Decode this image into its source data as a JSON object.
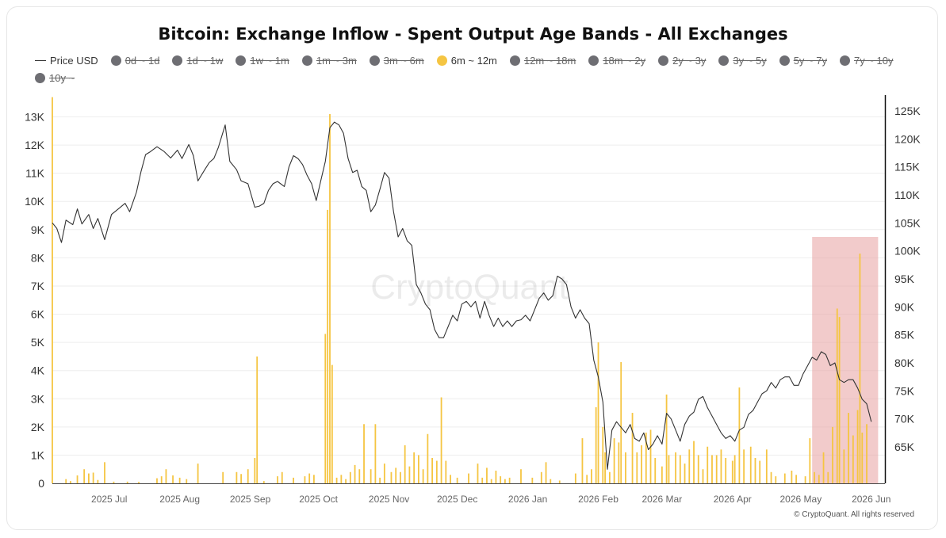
{
  "chart_data": {
    "type": "bar",
    "title": "Bitcoin: Exchange Inflow - Spent Output Age Bands - All Exchanges",
    "legend": [
      {
        "name": "Price USD",
        "type": "line",
        "color": "#333333",
        "enabled": true
      },
      {
        "name": "0d ~ 1d",
        "color": "#6e6e73",
        "enabled": false
      },
      {
        "name": "1d ~ 1w",
        "color": "#6e6e73",
        "enabled": false
      },
      {
        "name": "1w ~ 1m",
        "color": "#6e6e73",
        "enabled": false
      },
      {
        "name": "1m ~ 3m",
        "color": "#6e6e73",
        "enabled": false
      },
      {
        "name": "3m ~ 6m",
        "color": "#6e6e73",
        "enabled": false
      },
      {
        "name": "6m ~ 12m",
        "color": "#f5c542",
        "enabled": true
      },
      {
        "name": "12m ~ 18m",
        "color": "#6e6e73",
        "enabled": false
      },
      {
        "name": "18m ~ 2y",
        "color": "#6e6e73",
        "enabled": false
      },
      {
        "name": "2y ~ 3y",
        "color": "#6e6e73",
        "enabled": false
      },
      {
        "name": "3y ~ 5y",
        "color": "#6e6e73",
        "enabled": false
      },
      {
        "name": "5y ~ 7y",
        "color": "#6e6e73",
        "enabled": false
      },
      {
        "name": "7y ~ 10y",
        "color": "#6e6e73",
        "enabled": false
      },
      {
        "name": "10y ~",
        "color": "#6e6e73",
        "enabled": false
      }
    ],
    "x_labels": [
      "2025 Jul",
      "2025 Aug",
      "2025 Sep",
      "2025 Oct",
      "2025 Nov",
      "2025 Dec",
      "2026 Jan",
      "2026 Feb",
      "2026 Mar",
      "2026 Apr",
      "2026 May",
      "2026 Jun"
    ],
    "x_range": [
      "2025-06-06",
      "2026-06-07"
    ],
    "y_left": {
      "ticks": [
        "0",
        "1K",
        "2K",
        "3K",
        "4K",
        "5K",
        "6K",
        "7K",
        "8K",
        "9K",
        "10K",
        "11K",
        "12K",
        "13K"
      ],
      "min": 0,
      "max": 13000
    },
    "y_right": {
      "ticks": [
        "65K",
        "70K",
        "75K",
        "80K",
        "85K",
        "90K",
        "95K",
        "100K",
        "105K",
        "110K",
        "115K",
        "120K",
        "125K"
      ],
      "min": 60200,
      "max": 126800
    },
    "grid": true,
    "inflow_6m_12m": [
      [
        "2025-06-12",
        150
      ],
      [
        "2025-06-14",
        80
      ],
      [
        "2025-06-17",
        280
      ],
      [
        "2025-06-20",
        500
      ],
      [
        "2025-06-22",
        350
      ],
      [
        "2025-06-24",
        380
      ],
      [
        "2025-06-26",
        120
      ],
      [
        "2025-06-29",
        750
      ],
      [
        "2025-07-03",
        60
      ],
      [
        "2025-07-09",
        60
      ],
      [
        "2025-07-14",
        50
      ],
      [
        "2025-07-22",
        180
      ],
      [
        "2025-07-24",
        250
      ],
      [
        "2025-07-26",
        500
      ],
      [
        "2025-07-29",
        280
      ],
      [
        "2025-08-01",
        200
      ],
      [
        "2025-08-04",
        150
      ],
      [
        "2025-08-09",
        700
      ],
      [
        "2025-08-20",
        400
      ],
      [
        "2025-08-26",
        400
      ],
      [
        "2025-08-28",
        330
      ],
      [
        "2025-08-31",
        500
      ],
      [
        "2025-09-03",
        900
      ],
      [
        "2025-09-04",
        4500
      ],
      [
        "2025-09-07",
        80
      ],
      [
        "2025-09-13",
        250
      ],
      [
        "2025-09-15",
        400
      ],
      [
        "2025-09-20",
        200
      ],
      [
        "2025-09-25",
        250
      ],
      [
        "2025-09-27",
        350
      ],
      [
        "2025-09-29",
        300
      ],
      [
        "2025-10-04",
        5300
      ],
      [
        "2025-10-05",
        9700
      ],
      [
        "2025-10-06",
        13100
      ],
      [
        "2025-10-07",
        4200
      ],
      [
        "2025-10-09",
        200
      ],
      [
        "2025-10-11",
        300
      ],
      [
        "2025-10-13",
        150
      ],
      [
        "2025-10-15",
        400
      ],
      [
        "2025-10-17",
        650
      ],
      [
        "2025-10-19",
        500
      ],
      [
        "2025-10-21",
        2100
      ],
      [
        "2025-10-24",
        500
      ],
      [
        "2025-10-26",
        2100
      ],
      [
        "2025-10-28",
        200
      ],
      [
        "2025-10-30",
        700
      ],
      [
        "2025-11-02",
        400
      ],
      [
        "2025-11-04",
        550
      ],
      [
        "2025-11-06",
        400
      ],
      [
        "2025-11-08",
        1350
      ],
      [
        "2025-11-10",
        600
      ],
      [
        "2025-11-12",
        1100
      ],
      [
        "2025-11-14",
        1000
      ],
      [
        "2025-11-16",
        500
      ],
      [
        "2025-11-18",
        1750
      ],
      [
        "2025-11-20",
        900
      ],
      [
        "2025-11-22",
        800
      ],
      [
        "2025-11-24",
        3050
      ],
      [
        "2025-11-26",
        800
      ],
      [
        "2025-11-28",
        300
      ],
      [
        "2025-12-01",
        200
      ],
      [
        "2025-12-06",
        350
      ],
      [
        "2025-12-10",
        700
      ],
      [
        "2025-12-12",
        200
      ],
      [
        "2025-12-14",
        550
      ],
      [
        "2025-12-16",
        150
      ],
      [
        "2025-12-18",
        450
      ],
      [
        "2025-12-20",
        250
      ],
      [
        "2025-12-22",
        150
      ],
      [
        "2025-12-24",
        200
      ],
      [
        "2025-12-29",
        500
      ],
      [
        "2026-01-03",
        200
      ],
      [
        "2026-01-07",
        400
      ],
      [
        "2026-01-09",
        750
      ],
      [
        "2026-01-11",
        150
      ],
      [
        "2026-01-15",
        100
      ],
      [
        "2026-01-22",
        350
      ],
      [
        "2026-01-25",
        1600
      ],
      [
        "2026-01-27",
        300
      ],
      [
        "2026-01-29",
        500
      ],
      [
        "2026-01-31",
        2700
      ],
      [
        "2026-02-01",
        5000
      ],
      [
        "2026-02-03",
        2000
      ],
      [
        "2026-02-04",
        1100
      ],
      [
        "2026-02-06",
        400
      ],
      [
        "2026-02-08",
        1600
      ],
      [
        "2026-02-10",
        1450
      ],
      [
        "2026-02-11",
        4300
      ],
      [
        "2026-02-13",
        1100
      ],
      [
        "2026-02-16",
        2500
      ],
      [
        "2026-02-18",
        1100
      ],
      [
        "2026-02-20",
        1350
      ],
      [
        "2026-02-22",
        1800
      ],
      [
        "2026-02-24",
        1900
      ],
      [
        "2026-02-26",
        900
      ],
      [
        "2026-03-01",
        600
      ],
      [
        "2026-03-03",
        3150
      ],
      [
        "2026-03-04",
        1000
      ],
      [
        "2026-03-07",
        1100
      ],
      [
        "2026-03-09",
        1000
      ],
      [
        "2026-03-11",
        700
      ],
      [
        "2026-03-13",
        1200
      ],
      [
        "2026-03-15",
        1500
      ],
      [
        "2026-03-17",
        1000
      ],
      [
        "2026-03-19",
        500
      ],
      [
        "2026-03-21",
        1300
      ],
      [
        "2026-03-23",
        1000
      ],
      [
        "2026-03-25",
        1000
      ],
      [
        "2026-03-27",
        1200
      ],
      [
        "2026-03-29",
        900
      ],
      [
        "2026-04-01",
        800
      ],
      [
        "2026-04-02",
        1000
      ],
      [
        "2026-04-04",
        3400
      ],
      [
        "2026-04-06",
        1200
      ],
      [
        "2026-04-09",
        1300
      ],
      [
        "2026-04-11",
        900
      ],
      [
        "2026-04-13",
        800
      ],
      [
        "2026-04-16",
        1200
      ],
      [
        "2026-04-18",
        400
      ],
      [
        "2026-04-20",
        250
      ],
      [
        "2026-04-24",
        350
      ],
      [
        "2026-04-27",
        450
      ],
      [
        "2026-04-29",
        300
      ],
      [
        "2026-05-03",
        250
      ],
      [
        "2026-05-05",
        1600
      ],
      [
        "2026-05-07",
        400
      ],
      [
        "2026-05-09",
        300
      ],
      [
        "2026-05-11",
        1100
      ],
      [
        "2026-05-13",
        400
      ],
      [
        "2026-05-15",
        2000
      ],
      [
        "2026-05-17",
        6200
      ],
      [
        "2026-05-18",
        5900
      ],
      [
        "2026-05-20",
        1200
      ],
      [
        "2026-05-22",
        2500
      ],
      [
        "2026-05-24",
        1700
      ],
      [
        "2026-05-26",
        2600
      ],
      [
        "2026-05-27",
        8150
      ],
      [
        "2026-05-28",
        1800
      ],
      [
        "2026-05-30",
        2100
      ]
    ],
    "price_usd": [
      [
        "2025-06-06",
        105000
      ],
      [
        "2025-06-08",
        104000
      ],
      [
        "2025-06-10",
        101500
      ],
      [
        "2025-06-12",
        105500
      ],
      [
        "2025-06-15",
        104700
      ],
      [
        "2025-06-17",
        107500
      ],
      [
        "2025-06-19",
        104800
      ],
      [
        "2025-06-22",
        106500
      ],
      [
        "2025-06-24",
        104000
      ],
      [
        "2025-06-26",
        105800
      ],
      [
        "2025-06-29",
        102000
      ],
      [
        "2025-07-02",
        106500
      ],
      [
        "2025-07-05",
        107500
      ],
      [
        "2025-07-08",
        108500
      ],
      [
        "2025-07-10",
        107000
      ],
      [
        "2025-07-13",
        110500
      ],
      [
        "2025-07-15",
        114200
      ],
      [
        "2025-07-17",
        117200
      ],
      [
        "2025-07-19",
        117700
      ],
      [
        "2025-07-22",
        118600
      ],
      [
        "2025-07-25",
        117800
      ],
      [
        "2025-07-28",
        116600
      ],
      [
        "2025-07-31",
        118000
      ],
      [
        "2025-08-02",
        116500
      ],
      [
        "2025-08-05",
        119000
      ],
      [
        "2025-08-07",
        117000
      ],
      [
        "2025-08-09",
        112500
      ],
      [
        "2025-08-12",
        114500
      ],
      [
        "2025-08-14",
        115800
      ],
      [
        "2025-08-16",
        116500
      ],
      [
        "2025-08-18",
        118500
      ],
      [
        "2025-08-21",
        122500
      ],
      [
        "2025-08-23",
        116000
      ],
      [
        "2025-08-26",
        114500
      ],
      [
        "2025-08-28",
        112500
      ],
      [
        "2025-08-31",
        112000
      ],
      [
        "2025-09-03",
        107800
      ],
      [
        "2025-09-05",
        108000
      ],
      [
        "2025-09-07",
        108500
      ],
      [
        "2025-09-09",
        110800
      ],
      [
        "2025-09-11",
        112000
      ],
      [
        "2025-09-13",
        112400
      ],
      [
        "2025-09-16",
        111500
      ],
      [
        "2025-09-18",
        115000
      ],
      [
        "2025-09-20",
        117000
      ],
      [
        "2025-09-22",
        116500
      ],
      [
        "2025-09-24",
        115400
      ],
      [
        "2025-09-26",
        113500
      ],
      [
        "2025-09-28",
        112000
      ],
      [
        "2025-09-30",
        109000
      ],
      [
        "2025-10-02",
        112500
      ],
      [
        "2025-10-04",
        116000
      ],
      [
        "2025-10-06",
        122000
      ],
      [
        "2025-10-08",
        123000
      ],
      [
        "2025-10-10",
        122500
      ],
      [
        "2025-10-12",
        121000
      ],
      [
        "2025-10-14",
        116500
      ],
      [
        "2025-10-16",
        114000
      ],
      [
        "2025-10-18",
        114400
      ],
      [
        "2025-10-20",
        111500
      ],
      [
        "2025-10-22",
        110800
      ],
      [
        "2025-10-24",
        107000
      ],
      [
        "2025-10-26",
        108200
      ],
      [
        "2025-10-28",
        111000
      ],
      [
        "2025-10-30",
        114000
      ],
      [
        "2025-11-01",
        113000
      ],
      [
        "2025-11-03",
        107000
      ],
      [
        "2025-11-05",
        102500
      ],
      [
        "2025-11-07",
        104000
      ],
      [
        "2025-11-09",
        101800
      ],
      [
        "2025-11-11",
        101000
      ],
      [
        "2025-11-13",
        94000
      ],
      [
        "2025-11-15",
        92500
      ],
      [
        "2025-11-17",
        90500
      ],
      [
        "2025-11-19",
        89500
      ],
      [
        "2025-11-21",
        86000
      ],
      [
        "2025-11-23",
        84500
      ],
      [
        "2025-11-25",
        84500
      ],
      [
        "2025-11-27",
        86500
      ],
      [
        "2025-11-29",
        88500
      ],
      [
        "2025-12-01",
        87500
      ],
      [
        "2025-12-03",
        90500
      ],
      [
        "2025-12-05",
        91000
      ],
      [
        "2025-12-07",
        90000
      ],
      [
        "2025-12-09",
        91000
      ],
      [
        "2025-12-11",
        88000
      ],
      [
        "2025-12-13",
        91000
      ],
      [
        "2025-12-15",
        88500
      ],
      [
        "2025-12-17",
        86500
      ],
      [
        "2025-12-19",
        88000
      ],
      [
        "2025-12-21",
        86500
      ],
      [
        "2025-12-23",
        87500
      ],
      [
        "2025-12-25",
        86500
      ],
      [
        "2025-12-27",
        87500
      ],
      [
        "2025-12-29",
        87700
      ],
      [
        "2025-12-31",
        88500
      ],
      [
        "2026-01-02",
        87500
      ],
      [
        "2026-01-04",
        89500
      ],
      [
        "2026-01-06",
        91500
      ],
      [
        "2026-01-08",
        92500
      ],
      [
        "2026-01-10",
        91200
      ],
      [
        "2026-01-12",
        92000
      ],
      [
        "2026-01-14",
        95500
      ],
      [
        "2026-01-16",
        95000
      ],
      [
        "2026-01-18",
        94000
      ],
      [
        "2026-01-20",
        90000
      ],
      [
        "2026-01-22",
        88000
      ],
      [
        "2026-01-24",
        89500
      ],
      [
        "2026-01-26",
        88000
      ],
      [
        "2026-01-28",
        87000
      ],
      [
        "2026-01-30",
        80500
      ],
      [
        "2026-02-01",
        77500
      ],
      [
        "2026-02-03",
        73000
      ],
      [
        "2026-02-05",
        61000
      ],
      [
        "2026-02-07",
        68000
      ],
      [
        "2026-02-09",
        69500
      ],
      [
        "2026-02-11",
        68500
      ],
      [
        "2026-02-13",
        67500
      ],
      [
        "2026-02-15",
        69000
      ],
      [
        "2026-02-17",
        66500
      ],
      [
        "2026-02-19",
        66000
      ],
      [
        "2026-02-21",
        67500
      ],
      [
        "2026-02-23",
        64500
      ],
      [
        "2026-02-25",
        65500
      ],
      [
        "2026-02-27",
        67000
      ],
      [
        "2026-03-01",
        65500
      ],
      [
        "2026-03-03",
        71000
      ],
      [
        "2026-03-05",
        70000
      ],
      [
        "2026-03-07",
        68000
      ],
      [
        "2026-03-09",
        66000
      ],
      [
        "2026-03-11",
        69000
      ],
      [
        "2026-03-13",
        70500
      ],
      [
        "2026-03-15",
        71200
      ],
      [
        "2026-03-17",
        73500
      ],
      [
        "2026-03-19",
        74000
      ],
      [
        "2026-03-21",
        72000
      ],
      [
        "2026-03-23",
        70500
      ],
      [
        "2026-03-25",
        69000
      ],
      [
        "2026-03-27",
        67500
      ],
      [
        "2026-03-29",
        66500
      ],
      [
        "2026-03-31",
        67000
      ],
      [
        "2026-04-02",
        66000
      ],
      [
        "2026-04-04",
        68000
      ],
      [
        "2026-04-06",
        68500
      ],
      [
        "2026-04-08",
        70800
      ],
      [
        "2026-04-10",
        71500
      ],
      [
        "2026-04-12",
        73000
      ],
      [
        "2026-04-14",
        74500
      ],
      [
        "2026-04-16",
        75000
      ],
      [
        "2026-04-18",
        76500
      ],
      [
        "2026-04-20",
        75500
      ],
      [
        "2026-04-22",
        77000
      ],
      [
        "2026-04-24",
        77500
      ],
      [
        "2026-04-26",
        77500
      ],
      [
        "2026-04-28",
        76000
      ],
      [
        "2026-04-30",
        76000
      ],
      [
        "2026-05-02",
        78000
      ],
      [
        "2026-05-04",
        79500
      ],
      [
        "2026-05-06",
        81000
      ],
      [
        "2026-05-08",
        80500
      ],
      [
        "2026-05-10",
        82000
      ],
      [
        "2026-05-12",
        81500
      ],
      [
        "2026-05-14",
        79500
      ],
      [
        "2026-05-16",
        80000
      ],
      [
        "2026-05-18",
        77000
      ],
      [
        "2026-05-20",
        76500
      ],
      [
        "2026-05-22",
        77000
      ],
      [
        "2026-05-24",
        77000
      ],
      [
        "2026-05-26",
        75500
      ],
      [
        "2026-05-28",
        73500
      ],
      [
        "2026-05-30",
        72700
      ],
      [
        "2026-06-01",
        69500
      ]
    ],
    "highlight_range": [
      "2026-05-06",
      "2026-06-04"
    ],
    "highlight_color": "#e8a0a0",
    "bar_color": "#f5c542",
    "line_color": "#333333"
  },
  "watermark": "CryptoQuant",
  "copyright": "© CryptoQuant. All rights reserved"
}
